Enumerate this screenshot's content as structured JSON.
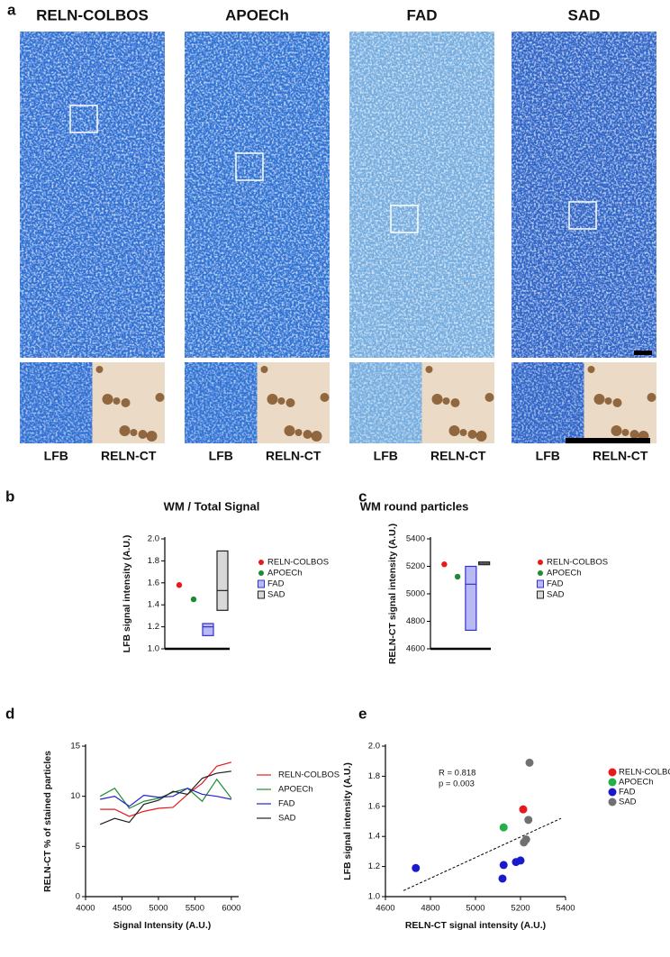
{
  "figure": {
    "panel_labels": [
      "a",
      "b",
      "c",
      "d",
      "e"
    ],
    "panel_a": [
      {
        "title": "RELN-COLBOS",
        "insets": [
          "LFB",
          "RELN-CT"
        ]
      },
      {
        "title": "APOECh",
        "insets": [
          "LFB",
          "RELN-CT"
        ]
      },
      {
        "title": "FAD",
        "insets": [
          "LFB",
          "RELN-CT"
        ]
      },
      {
        "title": "SAD",
        "insets": [
          "LFB",
          "RELN-CT"
        ]
      }
    ]
  },
  "chart_data": [
    {
      "type": "box",
      "title": "WM / Total Signal",
      "ylabel": "LFB signal intensity (A.U.)",
      "ylim": [
        1,
        2
      ],
      "yticks": [
        {
          "value": 1,
          "label": "1.0"
        },
        1.2,
        1.4,
        1.6,
        1.8,
        {
          "value": 2,
          "label": "2.0"
        }
      ],
      "legend": "right",
      "series": [
        {
          "name": "RELN-COLBOS",
          "color": "#e8191c",
          "marker": "dot",
          "values": [
            1.58
          ]
        },
        {
          "name": "APOECh",
          "color": "#1e8c2e",
          "marker": "dot",
          "values": [
            1.45
          ]
        },
        {
          "name": "FAD",
          "color": "#b9b9f5",
          "edge": "#3333cc",
          "marker": "box",
          "values": [
            1.12,
            1.2,
            1.23
          ]
        },
        {
          "name": "SAD",
          "color": "#d8d8d8",
          "edge": "#222222",
          "marker": "box",
          "values": [
            1.35,
            1.53,
            1.89
          ]
        }
      ]
    },
    {
      "type": "box",
      "title": "WM round particles",
      "ylabel": "RELN-CT signal intensity (A.U.)",
      "ylim": [
        4600,
        5400
      ],
      "yticks": [
        4600,
        4800,
        5000,
        5200,
        5400
      ],
      "legend": "right",
      "series": [
        {
          "name": "RELN-COLBOS",
          "color": "#e8191c",
          "marker": "dot",
          "values": [
            5215
          ]
        },
        {
          "name": "APOECh",
          "color": "#1e8c2e",
          "marker": "dot",
          "values": [
            5125
          ]
        },
        {
          "name": "FAD",
          "color": "#b9b9f5",
          "edge": "#3333cc",
          "marker": "box",
          "values": [
            4735,
            5070,
            5200
          ]
        },
        {
          "name": "SAD",
          "color": "#d8d8d8",
          "edge": "#222222",
          "marker": "box",
          "values": [
            5212,
            5222,
            5232
          ]
        }
      ]
    },
    {
      "type": "line",
      "xlabel": "Signal Intensity (A.U.)",
      "ylabel": "RELN-CT % of stained particles",
      "xlim": [
        4000,
        6100
      ],
      "xticks": [
        4000,
        4500,
        5000,
        5500,
        6000
      ],
      "ylim": [
        0,
        15
      ],
      "yticks": [
        0,
        5,
        10,
        15
      ],
      "legend": "right",
      "x": [
        4200,
        4400,
        4600,
        4800,
        5000,
        5200,
        5400,
        5600,
        5800,
        6000
      ],
      "series": [
        {
          "name": "RELN-COLBOS",
          "color": "#e8191c",
          "values": [
            8.7,
            8.7,
            8.0,
            8.5,
            8.8,
            8.9,
            10.2,
            11.3,
            13.0,
            13.4
          ]
        },
        {
          "name": "APOECh",
          "color": "#1e8c2e",
          "values": [
            10.0,
            10.8,
            8.8,
            9.5,
            9.8,
            10.4,
            10.8,
            9.5,
            11.7,
            9.8
          ]
        },
        {
          "name": "FAD",
          "color": "#2222cc",
          "values": [
            9.7,
            10.0,
            9.0,
            10.1,
            9.9,
            10.0,
            10.8,
            10.2,
            10.0,
            9.7
          ]
        },
        {
          "name": "SAD",
          "color": "#222222",
          "values": [
            7.2,
            7.8,
            7.4,
            9.2,
            9.6,
            10.5,
            10.2,
            11.8,
            12.3,
            12.5
          ]
        }
      ]
    },
    {
      "type": "scatter",
      "xlabel": "RELN-CT  signal intensity (A.U.)",
      "ylabel": "LFB signal intensity (A.U.)",
      "xlim": [
        4600,
        5400
      ],
      "xticks": [
        4600,
        4800,
        5000,
        5200,
        5400
      ],
      "ylim": [
        1,
        2
      ],
      "yticks": [
        {
          "value": 1,
          "label": "1.0"
        },
        1.2,
        1.4,
        1.6,
        1.8,
        {
          "value": 2,
          "label": "2.0"
        }
      ],
      "legend": "right",
      "annotations": [
        "R = 0.818",
        "p = 0.003"
      ],
      "trendline": {
        "x": [
          4680,
          5380
        ],
        "values": [
          1.04,
          1.52
        ]
      },
      "series": [
        {
          "name": "RELN-COLBOS",
          "color": "#e8191c",
          "x": [
            5212
          ],
          "values": [
            1.58
          ]
        },
        {
          "name": "APOECh",
          "color": "#22b04a",
          "x": [
            5125
          ],
          "values": [
            1.46
          ]
        },
        {
          "name": "FAD",
          "color": "#1a1acc",
          "x": [
            4735,
            5120,
            5125,
            5180,
            5200
          ],
          "values": [
            1.19,
            1.12,
            1.21,
            1.23,
            1.24
          ]
        },
        {
          "name": "SAD",
          "color": "#707070",
          "x": [
            5240,
            5215,
            5225,
            5235
          ],
          "values": [
            1.89,
            1.36,
            1.38,
            1.51
          ]
        }
      ]
    }
  ]
}
